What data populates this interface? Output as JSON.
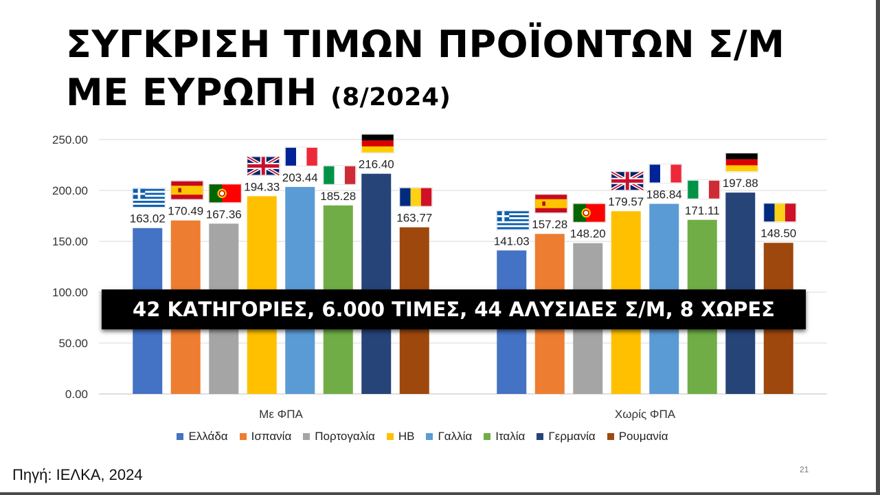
{
  "title": {
    "line1": "ΣΥΓΚΡΙΣΗ ΤΙΜΩΝ ΠΡΟΪΟΝΤΩΝ Σ/Μ",
    "line2": "ΜΕ ΕΥΡΩΠΗ",
    "date": "(8/2024)"
  },
  "banner": "42 ΚΑΤΗΓΟΡΙΕΣ, 6.000 ΤΙΜΕΣ, 44 ΑΛΥΣΙΔΕΣ Σ/Μ, 8 ΧΩΡΕΣ",
  "source": "Πηγή: ΙΕΛΚΑ, 2024",
  "page_number": "21",
  "chart_data": {
    "type": "bar",
    "categories": [
      "Με ΦΠΑ",
      "Χωρίς ΦΠΑ"
    ],
    "ylim": [
      0,
      250
    ],
    "yticks": [
      "0.00",
      "50.00",
      "100.00",
      "150.00",
      "200.00",
      "250.00"
    ],
    "grid": true,
    "legend_position": "bottom",
    "series": [
      {
        "name": "Ελλάδα",
        "color": "#4472C4",
        "flag": "greece",
        "values": [
          163.02,
          141.03
        ],
        "labels": [
          "163.02",
          "141.03"
        ]
      },
      {
        "name": "Ισπανία",
        "color": "#ED7D31",
        "flag": "spain",
        "values": [
          170.49,
          157.28
        ],
        "labels": [
          "170.49",
          "157.28"
        ]
      },
      {
        "name": "Πορτογαλία",
        "color": "#A5A5A5",
        "flag": "portugal",
        "values": [
          167.36,
          148.2
        ],
        "labels": [
          "167.36",
          "148.20"
        ]
      },
      {
        "name": "ΗΒ",
        "color": "#FFC000",
        "flag": "uk",
        "values": [
          194.33,
          179.57
        ],
        "labels": [
          "194.33",
          "179.57"
        ]
      },
      {
        "name": "Γαλλία",
        "color": "#5B9BD5",
        "flag": "france",
        "values": [
          203.44,
          186.84
        ],
        "labels": [
          "203.44",
          "186.84"
        ]
      },
      {
        "name": "Ιταλία",
        "color": "#70AD47",
        "flag": "italy",
        "values": [
          185.28,
          171.11
        ],
        "labels": [
          "185.28",
          "171.11"
        ]
      },
      {
        "name": "Γερμανία",
        "color": "#264478",
        "flag": "germany",
        "values": [
          216.4,
          197.88
        ],
        "labels": [
          "216.40",
          "197.88"
        ]
      },
      {
        "name": "Ρουμανία",
        "color": "#9E480E",
        "flag": "romania",
        "values": [
          163.77,
          148.5
        ],
        "labels": [
          "163.77",
          "148.50"
        ]
      }
    ]
  }
}
